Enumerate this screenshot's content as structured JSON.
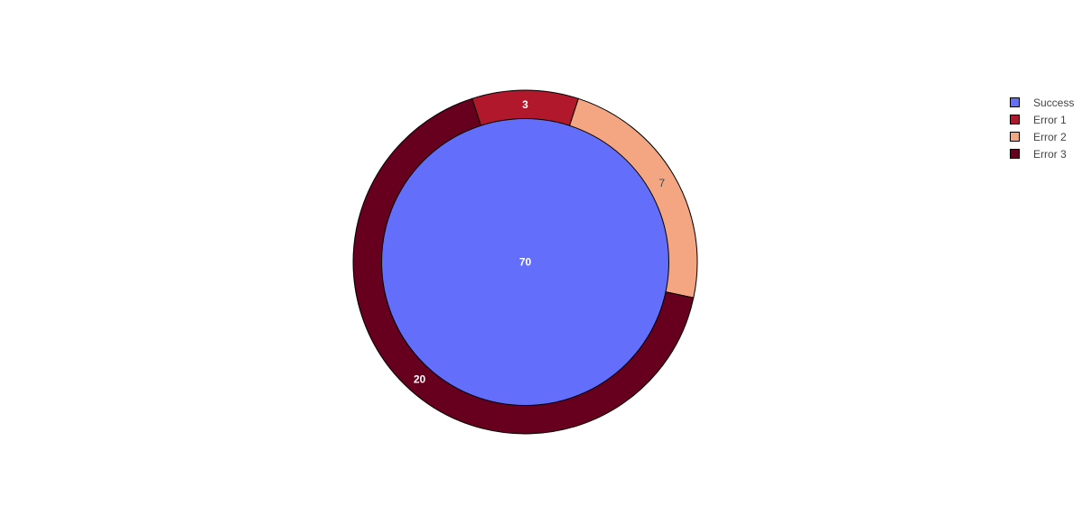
{
  "chart_data": {
    "type": "pie",
    "variant": "nested-pie",
    "inner": {
      "labels": [
        "Success"
      ],
      "values": [
        70
      ],
      "colors": [
        "#636efa"
      ]
    },
    "outer": {
      "labels": [
        "Error 1",
        "Error 2",
        "Error 3"
      ],
      "values": [
        3,
        7,
        20
      ],
      "colors": [
        "#b2182b",
        "#f4a582",
        "#67001f"
      ]
    },
    "legend": {
      "placement": "top-right",
      "entries": [
        {
          "label": "Success",
          "color": "#636efa"
        },
        {
          "label": "Error 1",
          "color": "#b2182b"
        },
        {
          "label": "Error 2",
          "color": "#f4a582"
        },
        {
          "label": "Error 3",
          "color": "#67001f"
        }
      ]
    },
    "label_colors": {
      "on_dark": "#ffffff",
      "on_light": "#444444"
    }
  }
}
